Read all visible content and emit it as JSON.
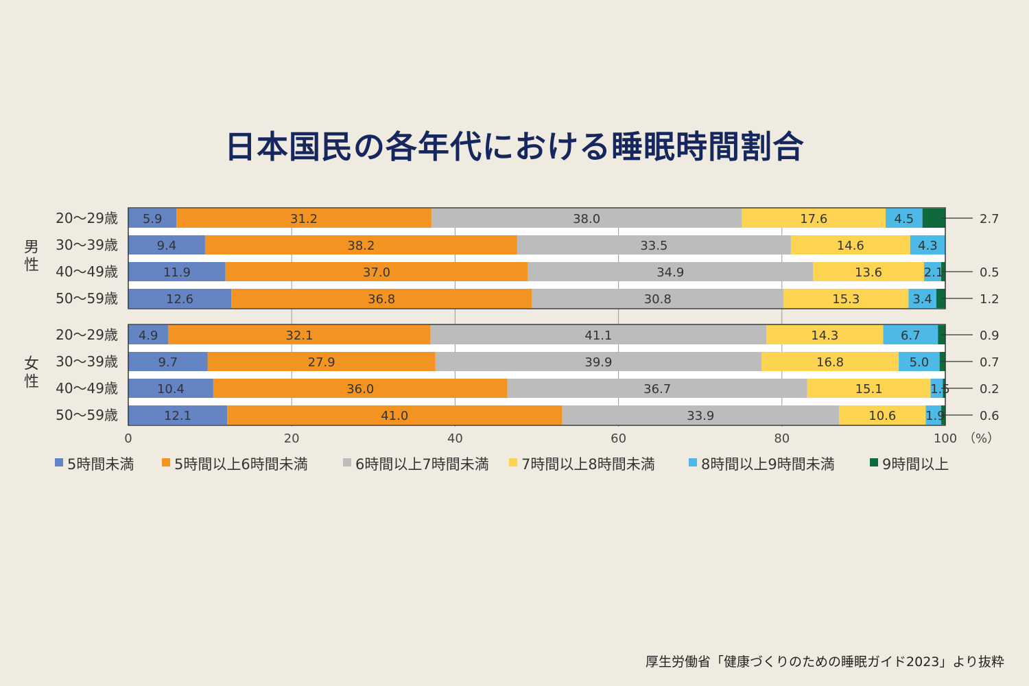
{
  "title": "日本国民の各年代における睡眠時間割合",
  "source": "厚生労働省「健康づくりのための睡眠ガイド2023」より抜粋",
  "chart_data": {
    "type": "bar",
    "orientation": "horizontal",
    "stacked": true,
    "xlim": [
      0,
      100
    ],
    "x_ticks": [
      "0",
      "20",
      "40",
      "60",
      "80",
      "100"
    ],
    "unit_label": "（%）",
    "legend_position": "bottom",
    "series": [
      {
        "name": "5時間未満",
        "color": "#6584c4"
      },
      {
        "name": "5時間以上6時間未満",
        "color": "#f39422"
      },
      {
        "name": "6時間以上7時間未満",
        "color": "#bcbcbc"
      },
      {
        "name": "7時間以上8時間未満",
        "color": "#fcd451"
      },
      {
        "name": "8時間以上9時間未満",
        "color": "#4cb9e6"
      },
      {
        "name": "9時間以上",
        "color": "#0e6a3c"
      }
    ],
    "groups": [
      {
        "name": "男性",
        "rows": [
          {
            "label": "20〜29歳",
            "values": [
              5.9,
              31.2,
              38.0,
              17.6,
              4.5,
              2.7
            ],
            "labels": [
              "5.9",
              "31.2",
              "38.0",
              "17.6",
              "4.5",
              "2.7"
            ]
          },
          {
            "label": "30〜39歳",
            "values": [
              9.4,
              38.2,
              33.5,
              14.6,
              4.3,
              0
            ],
            "labels": [
              "9.4",
              "38.2",
              "33.5",
              "14.6",
              "4.3",
              ""
            ]
          },
          {
            "label": "40〜49歳",
            "values": [
              11.9,
              37.0,
              34.9,
              13.6,
              2.1,
              0.5
            ],
            "labels": [
              "11.9",
              "37.0",
              "34.9",
              "13.6",
              "2.1",
              "0.5"
            ]
          },
          {
            "label": "50〜59歳",
            "values": [
              12.6,
              36.8,
              30.8,
              15.3,
              3.4,
              1.2
            ],
            "labels": [
              "12.6",
              "36.8",
              "30.8",
              "15.3",
              "3.4",
              "1.2"
            ]
          }
        ]
      },
      {
        "name": "女性",
        "rows": [
          {
            "label": "20〜29歳",
            "values": [
              4.9,
              32.1,
              41.1,
              14.3,
              6.7,
              0.9
            ],
            "labels": [
              "4.9",
              "32.1",
              "41.1",
              "14.3",
              "6.7",
              "0.9"
            ]
          },
          {
            "label": "30〜39歳",
            "values": [
              9.7,
              27.9,
              39.9,
              16.8,
              5.0,
              0.7
            ],
            "labels": [
              "9.7",
              "27.9",
              "39.9",
              "16.8",
              "5.0",
              "0.7"
            ]
          },
          {
            "label": "40〜49歳",
            "values": [
              10.4,
              36.0,
              36.7,
              15.1,
              1.5,
              0.2
            ],
            "labels": [
              "10.4",
              "36.0",
              "36.7",
              "15.1",
              "1.5",
              "0.2"
            ]
          },
          {
            "label": "50〜59歳",
            "values": [
              12.1,
              41.0,
              33.9,
              10.6,
              1.9,
              0.6
            ],
            "labels": [
              "12.1",
              "41.0",
              "33.9",
              "10.6",
              "1.9",
              "0.6"
            ]
          }
        ]
      }
    ]
  }
}
